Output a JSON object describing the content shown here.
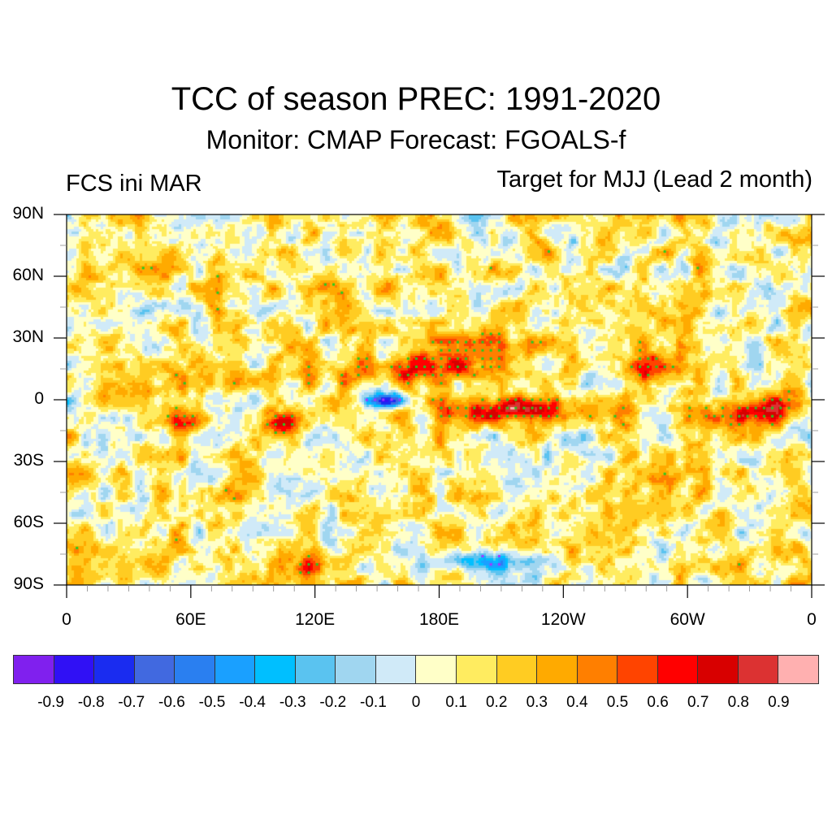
{
  "header": {
    "title": "TCC of season PREC: 1991-2020",
    "subtitle": "Monitor: CMAP   Forecast: FGOALS-f",
    "left_label": "FCS ini MAR",
    "right_label": "Target for MJJ (Lead 2 month)"
  },
  "chart_data": {
    "type": "heatmap",
    "title": "TCC of season PREC: 1991-2020",
    "subtitle": "Monitor: CMAP   Forecast: FGOALS-f",
    "left_string": "FCS ini MAR",
    "right_string": "Target for MJJ (Lead 2 month)",
    "projection": "cylindrical equidistant, global, centered 180",
    "xlabel": "",
    "ylabel": "",
    "x_ticks": [
      "0",
      "60E",
      "120E",
      "180E",
      "120W",
      "60W",
      "0"
    ],
    "x_tick_values": [
      0,
      60,
      120,
      180,
      240,
      300,
      360
    ],
    "y_ticks": [
      "90N",
      "60N",
      "30N",
      "0",
      "30S",
      "60S",
      "90S"
    ],
    "y_tick_values": [
      90,
      60,
      30,
      0,
      -30,
      -60,
      -90
    ],
    "xlim": [
      0,
      360
    ],
    "ylim": [
      -90,
      90
    ],
    "stippling": {
      "positive_significant_color": "#22cc22",
      "negative_significant_color": "#aa33ff"
    },
    "highlights": [
      {
        "region": "Equatorial central-eastern Pacific (180E-100W, 0-10S)",
        "tcc_range": "0.6-0.8"
      },
      {
        "region": "Tropical western Pacific / Philippine Sea (10-20N)",
        "tcc_range": "0.5-0.7"
      },
      {
        "region": "Equatorial Atlantic / NE Brazil",
        "tcc_range": "0.6-0.8"
      },
      {
        "region": "Caribbean / Central America (10-20N, 60-90W)",
        "tcc_range": "0.6-0.7"
      },
      {
        "region": "Western Indian Ocean (5-15S, 45-65E)",
        "tcc_range": "0.6-0.7"
      },
      {
        "region": "Maritime Continent SW (5-15S, 95-110E)",
        "tcc_range": "0.6-0.7"
      },
      {
        "region": "Equatorial western Pacific north of New Guinea (140-170E)",
        "tcc_range": "-0.3 to -0.5"
      },
      {
        "region": "Antarctic Ross Sea region (160E-150W, 70-85S)",
        "tcc_range": "-0.2 to -0.4"
      }
    ],
    "colorbar": {
      "levels": [
        -0.9,
        -0.8,
        -0.7,
        -0.6,
        -0.5,
        -0.4,
        -0.3,
        -0.2,
        -0.1,
        0,
        0.1,
        0.2,
        0.3,
        0.4,
        0.5,
        0.6,
        0.7,
        0.8,
        0.9
      ],
      "labels": [
        "-0.9",
        "-0.8",
        "-0.7",
        "-0.6",
        "-0.5",
        "-0.4",
        "-0.3",
        "-0.2",
        "-0.1",
        "0",
        "0.1",
        "0.2",
        "0.3",
        "0.4",
        "0.5",
        "0.6",
        "0.7",
        "0.8",
        "0.9"
      ],
      "colors": [
        "#8020ee",
        "#3010f5",
        "#1a2cf0",
        "#4169e0",
        "#2a7ff0",
        "#1aa0ff",
        "#00bfff",
        "#5ac3f0",
        "#a0d6f0",
        "#d0eaf8",
        "#ffffc8",
        "#ffec60",
        "#ffcc22",
        "#ffaa00",
        "#ff7f00",
        "#ff4400",
        "#ff0000",
        "#d80000",
        "#dc3232",
        "#ffb0b0"
      ]
    }
  }
}
